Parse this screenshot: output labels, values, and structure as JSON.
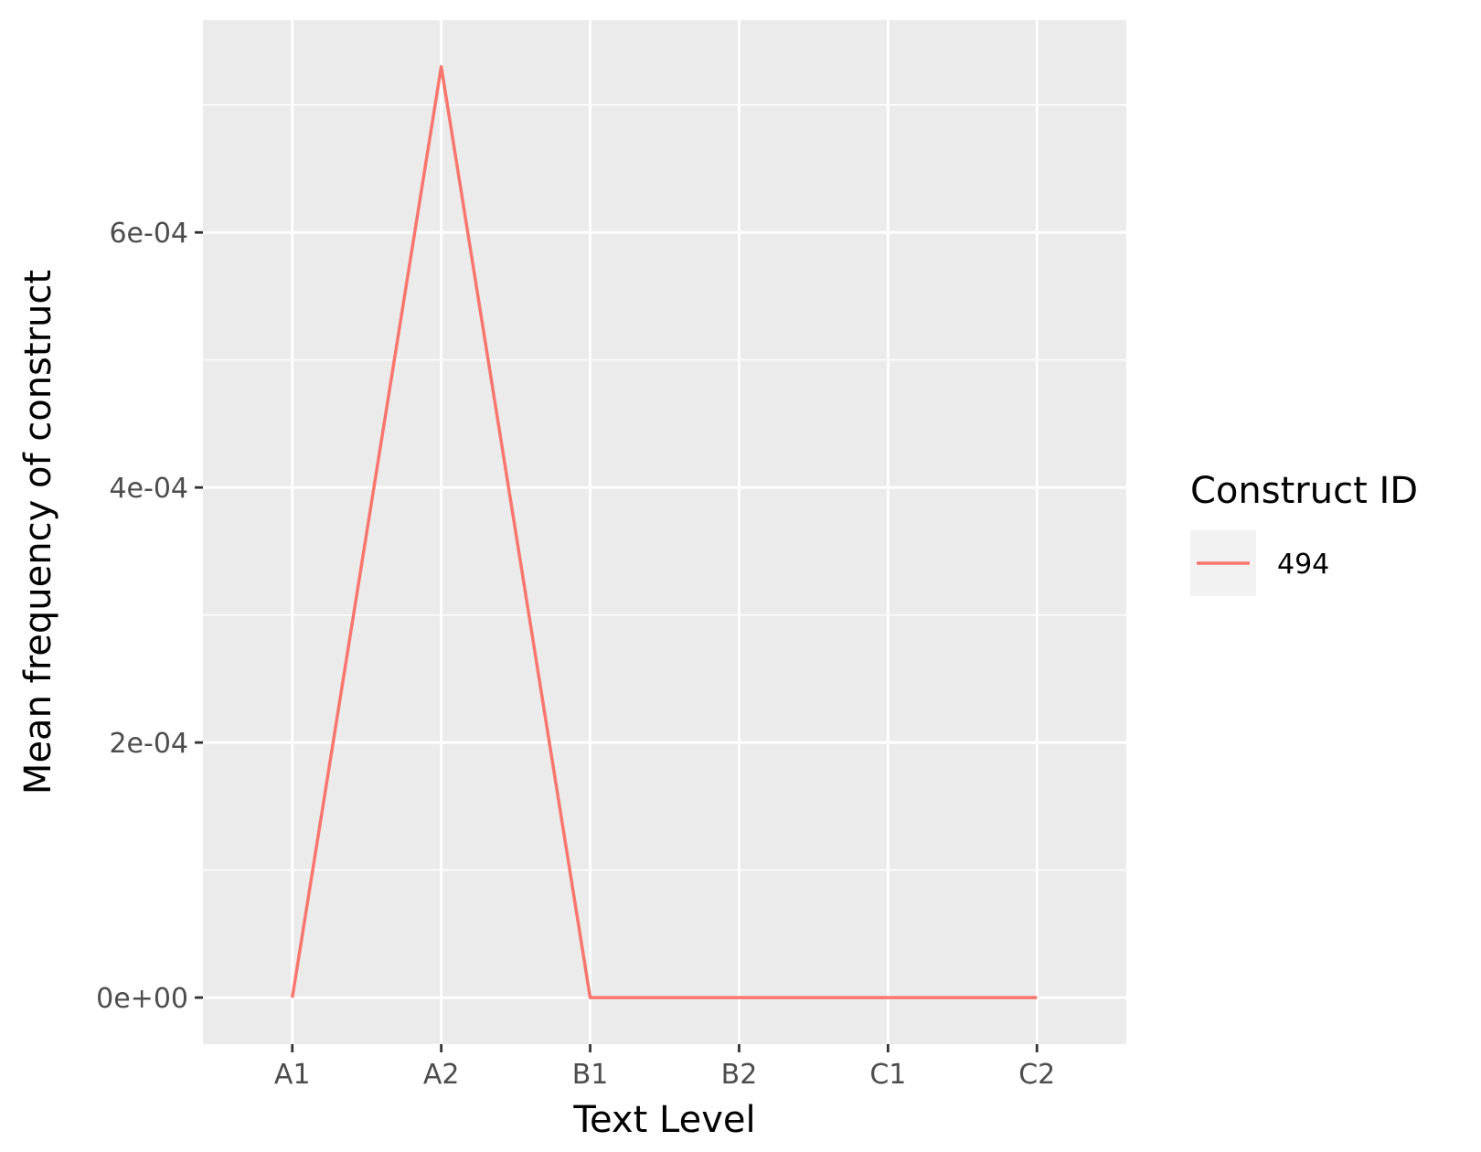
{
  "chart_data": {
    "type": "line",
    "categories": [
      "A1",
      "A2",
      "B1",
      "B2",
      "C1",
      "C2"
    ],
    "series": [
      {
        "name": "494",
        "values": [
          0,
          0.00073,
          0,
          0,
          0,
          0
        ],
        "color": "#F8766D"
      }
    ],
    "xlabel": "Text Level",
    "ylabel": "Mean frequency of construct",
    "ylim": [
      -3.65e-05,
      0.0007665
    ],
    "yticks": [
      0,
      0.0002,
      0.0004,
      0.0006
    ],
    "ytick_labels": [
      "0e+00",
      "2e-04",
      "4e-04",
      "6e-04"
    ],
    "legend": {
      "title": "Construct ID",
      "position": "right"
    },
    "grid": true,
    "panel_background": "#EBEBEB",
    "grid_color": "#FFFFFF"
  }
}
